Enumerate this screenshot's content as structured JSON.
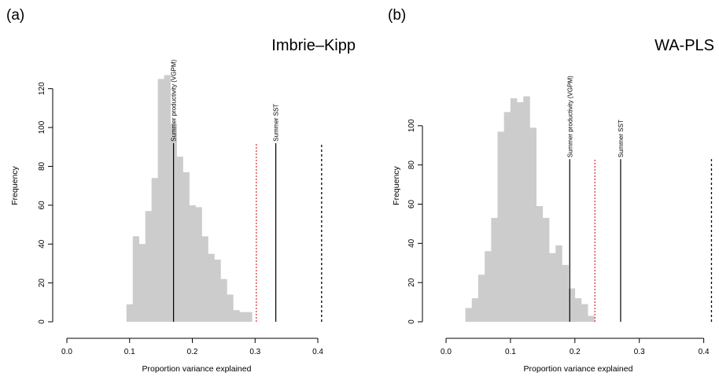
{
  "chart_data": [
    {
      "type": "histogram",
      "panel_label": "(a)",
      "title": "Imbrie–Kipp",
      "xlabel": "Proportion variance explained",
      "ylabel": "Frequency",
      "xlim": [
        0.0,
        0.42
      ],
      "ylim": [
        0,
        130
      ],
      "x_ticks": [
        0.0,
        0.1,
        0.2,
        0.3,
        0.4
      ],
      "x_tick_labels": [
        "0.0",
        "0.1",
        "0.2",
        "0.3",
        "0.4"
      ],
      "y_ticks": [
        0,
        20,
        40,
        60,
        80,
        100,
        120
      ],
      "y_tick_labels": [
        "0",
        "20",
        "40",
        "60",
        "80",
        "100",
        "120"
      ],
      "bin_start": 0.095,
      "bin_width": 0.01,
      "counts": [
        9,
        44,
        40,
        57,
        74,
        125,
        127,
        102,
        85,
        77,
        60,
        59,
        44,
        35,
        32,
        22,
        14,
        6,
        5,
        5
      ],
      "bar_color": "#cccccc",
      "vlines": [
        {
          "x": 0.17,
          "label": "Summer productivity (VGPM)",
          "style": "solid",
          "color": "#000000",
          "top": 92
        },
        {
          "x": 0.333,
          "label": "Summer SST",
          "style": "solid",
          "color": "#000000",
          "top": 92
        },
        {
          "x": 0.302,
          "label": "",
          "style": "dotted",
          "color": "#cc0000",
          "top": 92
        },
        {
          "x": 0.406,
          "label": "",
          "style": "dashed",
          "color": "#000000",
          "top": 92
        }
      ]
    },
    {
      "type": "histogram",
      "panel_label": "(b)",
      "title": "WA-PLS",
      "xlabel": "Proportion variance explained",
      "ylabel": "Frequency",
      "xlim": [
        0.0,
        0.42
      ],
      "ylim": [
        0,
        120
      ],
      "x_ticks": [
        0.0,
        0.1,
        0.2,
        0.3,
        0.4
      ],
      "x_tick_labels": [
        "0.0",
        "0.1",
        "0.2",
        "0.3",
        "0.4"
      ],
      "y_ticks": [
        0,
        20,
        40,
        60,
        80,
        100
      ],
      "y_tick_labels": [
        "0",
        "20",
        "40",
        "60",
        "80",
        "100"
      ],
      "bin_start": 0.03,
      "bin_width": 0.01,
      "counts": [
        7,
        12,
        24,
        36,
        53,
        97,
        107,
        114,
        112,
        115,
        99,
        59,
        53,
        35,
        39,
        29,
        17,
        12,
        9,
        3
      ],
      "bar_color": "#cccccc",
      "vlines": [
        {
          "x": 0.192,
          "label": "Summer productivity (VGPM)",
          "style": "solid",
          "color": "#000000",
          "top": 83
        },
        {
          "x": 0.271,
          "label": "Summer SST",
          "style": "solid",
          "color": "#000000",
          "top": 83
        },
        {
          "x": 0.231,
          "label": "",
          "style": "dotted",
          "color": "#cc0000",
          "top": 83
        },
        {
          "x": 0.412,
          "label": "",
          "style": "dashed",
          "color": "#000000",
          "top": 83
        }
      ]
    }
  ]
}
